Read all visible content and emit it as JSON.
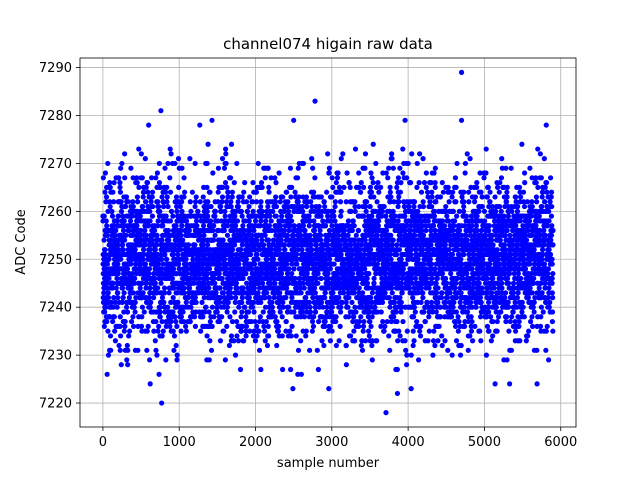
{
  "chart_data": {
    "type": "scatter",
    "title": "channel074 higain raw data",
    "xlabel": "sample number",
    "ylabel": "ADC Code",
    "xlim": [
      -300,
      6200
    ],
    "ylim": [
      7215,
      7292
    ],
    "xticks": [
      0,
      1000,
      2000,
      3000,
      4000,
      5000,
      6000
    ],
    "yticks": [
      7220,
      7230,
      7240,
      7250,
      7260,
      7270,
      7280,
      7290
    ],
    "grid": true,
    "marker": "circle",
    "color": "#0000ff",
    "n_samples": 5900,
    "mean": 7250,
    "std": 8,
    "series": [
      {
        "name": "",
        "values_description": "ADC codes for samples 0..5899, approximately normally distributed around 7250 with spread ~8 counts; integer-valued",
        "outliers": [
          {
            "x": 4700,
            "y": 7289
          },
          {
            "x": 2780,
            "y": 7283
          },
          {
            "x": 760,
            "y": 7281
          },
          {
            "x": 1430,
            "y": 7279
          },
          {
            "x": 2500,
            "y": 7279
          },
          {
            "x": 3960,
            "y": 7279
          },
          {
            "x": 4700,
            "y": 7279
          },
          {
            "x": 5810,
            "y": 7278
          },
          {
            "x": 600,
            "y": 7278
          },
          {
            "x": 1270,
            "y": 7278
          },
          {
            "x": 3710,
            "y": 7218
          },
          {
            "x": 770,
            "y": 7220
          },
          {
            "x": 3860,
            "y": 7222
          },
          {
            "x": 4040,
            "y": 7223
          },
          {
            "x": 2960,
            "y": 7223
          },
          {
            "x": 2490,
            "y": 7223
          },
          {
            "x": 620,
            "y": 7224
          },
          {
            "x": 5140,
            "y": 7224
          },
          {
            "x": 5330,
            "y": 7224
          },
          {
            "x": 5690,
            "y": 7224
          }
        ]
      }
    ]
  }
}
